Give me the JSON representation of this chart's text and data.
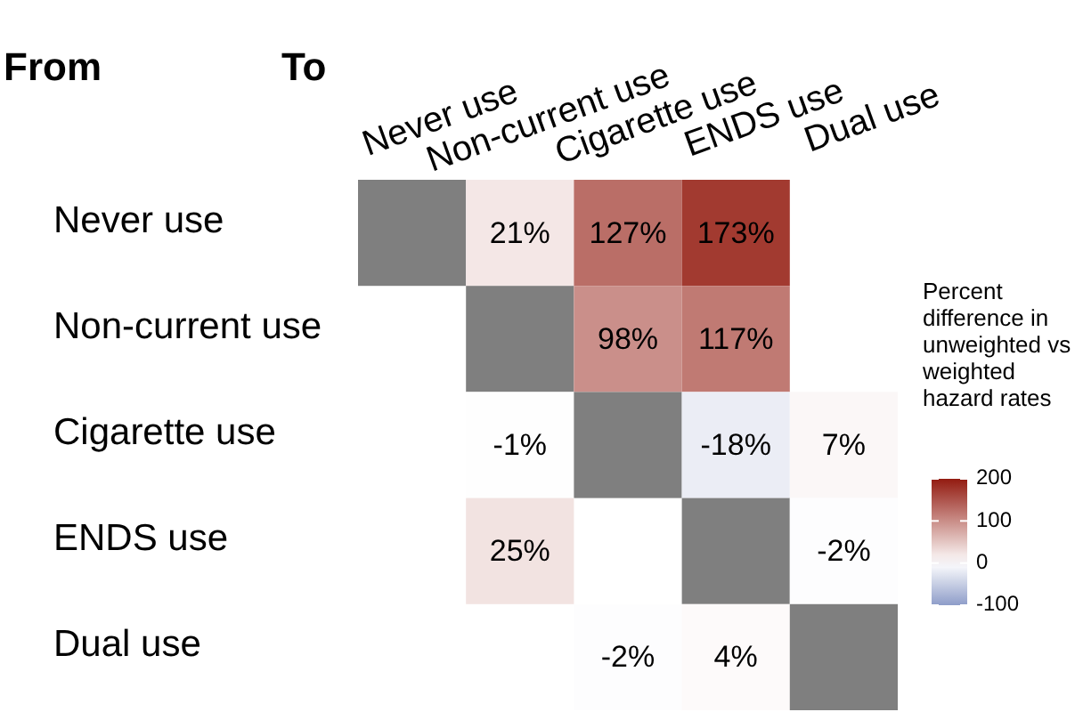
{
  "chart_data": {
    "type": "heatmap",
    "categories": [
      "Never use",
      "Non-current use",
      "Cigarette use",
      "ENDS use",
      "Dual use"
    ],
    "y_categories": [
      "Never use",
      "Non-current use",
      "Cigarette use",
      "ENDS use",
      "Dual use"
    ],
    "cells": [
      [
        null,
        21,
        127,
        173,
        null
      ],
      [
        null,
        null,
        98,
        117,
        null
      ],
      [
        null,
        -1,
        null,
        -18,
        7
      ],
      [
        null,
        25,
        null,
        null,
        -2
      ],
      [
        null,
        null,
        -2,
        4,
        null
      ]
    ],
    "cell_labels": [
      [
        null,
        "21%",
        "127%",
        "173%",
        null
      ],
      [
        null,
        null,
        "98%",
        "117%",
        null
      ],
      [
        null,
        "-1%",
        null,
        "-18%",
        "7%"
      ],
      [
        null,
        "25%",
        null,
        null,
        "-2%"
      ],
      [
        null,
        null,
        "-2%",
        "4%",
        null
      ]
    ],
    "clim": [
      -100,
      200
    ],
    "cticks": [
      -100,
      0,
      100,
      200
    ],
    "clabel": "Percent difference in unweighted vs weighted hazard rates",
    "annotations": [
      "From",
      "To"
    ]
  }
}
